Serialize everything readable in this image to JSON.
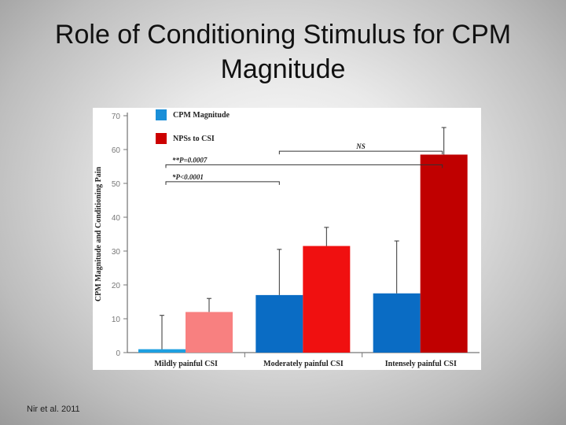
{
  "slide": {
    "title_line1": "Role of Conditioning Stimulus for CPM",
    "title_line2": "Magnitude",
    "citation": "Nir et al. 2011"
  },
  "chart_data": {
    "type": "bar",
    "categories": [
      "Mildly painful CSI",
      "Moderately painful CSI",
      "Intensely painful CSI"
    ],
    "ylabel": "CPM Magnitude and Conditioning Pain",
    "ylim": [
      0,
      70
    ],
    "yticks": [
      0,
      10,
      20,
      30,
      40,
      50,
      60,
      70
    ],
    "grid": false,
    "legend_position": "top-left",
    "series": [
      {
        "name": "CPM Magnitude",
        "values": [
          1,
          17,
          17.5
        ],
        "errors": [
          10,
          13.5,
          15.5
        ],
        "colors": [
          "#1ea0e0",
          "#0a6cc4",
          "#0a6cc4"
        ]
      },
      {
        "name": "NPSs to CSI",
        "values": [
          12,
          31.5,
          58.5
        ],
        "errors": [
          4,
          5.5,
          8
        ],
        "colors": [
          "#f88080",
          "#f01010",
          "#c00000"
        ]
      }
    ],
    "legend_colors": [
      "#1a8fd8",
      "#cc0000"
    ],
    "annotations": [
      {
        "text": "NS",
        "from": 1,
        "to": 2,
        "y": 59.5
      },
      {
        "text": "**P=0.0007",
        "from": 0,
        "to": 2,
        "y": 55.5
      },
      {
        "text": "*P<0.0001",
        "from": 0,
        "to": 1,
        "y": 50.5
      }
    ]
  }
}
